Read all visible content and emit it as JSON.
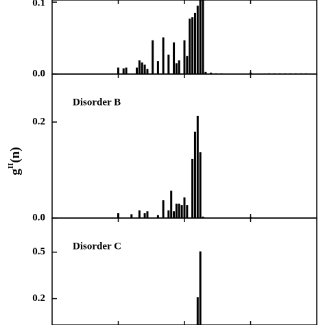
{
  "chart_data": [
    {
      "type": "bar",
      "color": "#000000",
      "x": [
        25,
        27,
        28,
        32,
        33,
        34,
        35,
        36,
        38,
        40,
        42,
        44,
        46,
        47,
        48,
        50,
        51,
        52,
        53,
        54,
        55,
        56,
        57,
        58,
        60,
        62,
        64,
        75,
        82,
        84,
        86,
        88,
        90,
        92,
        94,
        96
      ],
      "values": [
        0.009,
        0.008,
        0.009,
        0.009,
        0.019,
        0.016,
        0.013,
        0.007,
        0.047,
        0.018,
        0.051,
        0.027,
        0.044,
        0.015,
        0.019,
        0.047,
        0.025,
        0.077,
        0.079,
        0.085,
        0.095,
        0.103,
        0.103,
        0.003,
        0.002,
        0.001,
        0.001,
        0.002,
        0.001,
        0.001,
        0.001,
        0.001,
        0.001,
        0.001,
        0.001,
        0.001
      ],
      "xlim": [
        0,
        100
      ],
      "xticks": [
        25,
        50,
        75
      ],
      "ylim": [
        0,
        0.103
      ],
      "yticks": [
        {
          "value": 0,
          "label": "0.0"
        },
        0.1
      ]
    },
    {
      "type": "bar",
      "color": "#000000",
      "annotation": "Disorder B",
      "ylabel": {
        "main": "g",
        "sup": "II",
        "arg": "(n)"
      },
      "x": [
        25,
        30,
        33,
        35,
        36,
        40,
        42,
        44,
        45,
        46,
        47,
        48,
        49,
        50,
        51,
        53,
        54,
        55,
        56,
        57,
        75
      ],
      "values": [
        0.01,
        0.008,
        0.016,
        0.01,
        0.014,
        0.006,
        0.037,
        0.016,
        0.057,
        0.014,
        0.03,
        0.03,
        0.027,
        0.043,
        0.027,
        0.123,
        0.18,
        0.213,
        0.137,
        0.003,
        0.002
      ],
      "xlim": [
        0,
        100
      ],
      "xticks": [
        25,
        50,
        75
      ],
      "ylim": [
        0,
        0.3
      ],
      "yticks": [
        {
          "value": 0,
          "label": "0.0"
        },
        0.2
      ]
    },
    {
      "type": "bar",
      "color": "#000000",
      "annotation": "Disorder C",
      "x": [
        55,
        56
      ],
      "values": [
        0.21,
        0.505
      ],
      "xlim": [
        0,
        100
      ],
      "xticks": [
        25,
        50,
        75
      ],
      "ylim": [
        0.03,
        0.72
      ],
      "yticks": [
        0.2,
        0.5
      ]
    }
  ]
}
